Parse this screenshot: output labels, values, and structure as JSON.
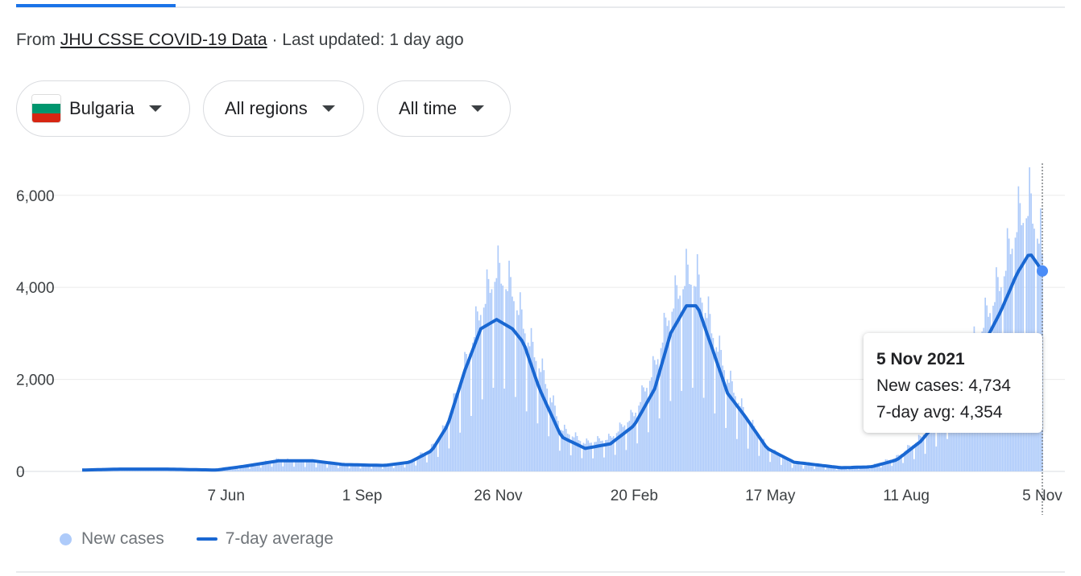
{
  "header": {
    "source_prefix": "From",
    "source_link": "JHU CSSE COVID-19 Data",
    "separator": "·",
    "updated": "Last updated: 1 day ago"
  },
  "filters": [
    {
      "label": "Bulgaria",
      "icon": "bulgaria-flag-icon"
    },
    {
      "label": "All regions",
      "icon": "chevron-down-icon"
    },
    {
      "label": "All time",
      "icon": "chevron-down-icon"
    }
  ],
  "colors": {
    "bars": "#aecbfa",
    "avg_line": "#1967d2",
    "flag": [
      "#ffffff",
      "#00966e",
      "#d62612"
    ]
  },
  "chart_data": {
    "type": "bar",
    "title": "",
    "xlabel": "",
    "ylabel": "",
    "ylim": [
      0,
      6800
    ],
    "y_ticks": [
      "0",
      "2,000",
      "4,000",
      "6,000"
    ],
    "x_ticks": [
      "7 Jun",
      "1 Sep",
      "26 Nov",
      "20 Feb",
      "17 May",
      "11 Aug",
      "5 Nov"
    ],
    "x_start": "2020-03-08",
    "x_end": "2021-11-05",
    "grid": true,
    "legend": "bottom-left",
    "series": [
      {
        "name": "New cases",
        "type": "bar",
        "keypoints": [
          [
            "2020-03-08",
            5
          ],
          [
            "2020-04-01",
            40
          ],
          [
            "2020-05-01",
            60
          ],
          [
            "2020-06-01",
            30
          ],
          [
            "2020-06-20",
            120
          ],
          [
            "2020-07-10",
            250
          ],
          [
            "2020-08-01",
            200
          ],
          [
            "2020-08-20",
            150
          ],
          [
            "2020-09-15",
            130
          ],
          [
            "2020-10-01",
            200
          ],
          [
            "2020-10-15",
            500
          ],
          [
            "2020-10-25",
            1000
          ],
          [
            "2020-11-05",
            2200
          ],
          [
            "2020-11-15",
            3400
          ],
          [
            "2020-11-25",
            4200
          ],
          [
            "2020-12-05",
            3800
          ],
          [
            "2020-12-15",
            2800
          ],
          [
            "2020-12-25",
            2000
          ],
          [
            "2021-01-05",
            900
          ],
          [
            "2021-01-20",
            600
          ],
          [
            "2021-02-05",
            700
          ],
          [
            "2021-02-20",
            1200
          ],
          [
            "2021-03-05",
            2200
          ],
          [
            "2021-03-15",
            3400
          ],
          [
            "2021-03-25",
            4100
          ],
          [
            "2021-04-01",
            4000
          ],
          [
            "2021-04-10",
            3000
          ],
          [
            "2021-04-20",
            2000
          ],
          [
            "2021-05-01",
            1200
          ],
          [
            "2021-05-15",
            500
          ],
          [
            "2021-06-01",
            150
          ],
          [
            "2021-07-01",
            60
          ],
          [
            "2021-07-20",
            120
          ],
          [
            "2021-08-05",
            300
          ],
          [
            "2021-08-20",
            700
          ],
          [
            "2021-09-05",
            1500
          ],
          [
            "2021-09-25",
            2800
          ],
          [
            "2021-10-10",
            4000
          ],
          [
            "2021-10-20",
            5200
          ],
          [
            "2021-10-28",
            5600
          ],
          [
            "2021-11-05",
            4734
          ]
        ]
      },
      {
        "name": "7-day average",
        "type": "line",
        "keypoints": [
          [
            "2020-03-08",
            30
          ],
          [
            "2020-04-01",
            50
          ],
          [
            "2020-05-01",
            50
          ],
          [
            "2020-06-01",
            30
          ],
          [
            "2020-06-20",
            120
          ],
          [
            "2020-07-10",
            230
          ],
          [
            "2020-08-01",
            230
          ],
          [
            "2020-08-20",
            150
          ],
          [
            "2020-09-15",
            130
          ],
          [
            "2020-10-01",
            200
          ],
          [
            "2020-10-15",
            450
          ],
          [
            "2020-10-25",
            1000
          ],
          [
            "2020-11-05",
            2200
          ],
          [
            "2020-11-15",
            3100
          ],
          [
            "2020-11-25",
            3300
          ],
          [
            "2020-12-05",
            3100
          ],
          [
            "2020-12-12",
            2800
          ],
          [
            "2020-12-22",
            1800
          ],
          [
            "2021-01-05",
            750
          ],
          [
            "2021-01-20",
            500
          ],
          [
            "2021-02-05",
            600
          ],
          [
            "2021-02-20",
            1000
          ],
          [
            "2021-03-05",
            1800
          ],
          [
            "2021-03-15",
            3000
          ],
          [
            "2021-03-25",
            3600
          ],
          [
            "2021-04-01",
            3600
          ],
          [
            "2021-04-08",
            2900
          ],
          [
            "2021-04-20",
            1700
          ],
          [
            "2021-05-01",
            1200
          ],
          [
            "2021-05-15",
            500
          ],
          [
            "2021-06-01",
            200
          ],
          [
            "2021-07-01",
            80
          ],
          [
            "2021-07-20",
            100
          ],
          [
            "2021-08-05",
            250
          ],
          [
            "2021-08-20",
            650
          ],
          [
            "2021-09-05",
            1300
          ],
          [
            "2021-09-25",
            2500
          ],
          [
            "2021-10-10",
            3500
          ],
          [
            "2021-10-20",
            4300
          ],
          [
            "2021-10-28",
            4750
          ],
          [
            "2021-11-05",
            4354
          ]
        ]
      }
    ],
    "tooltip": {
      "date": "5 Nov 2021",
      "new_cases": "New cases: 4,734",
      "avg": "7-day avg: 4,354"
    }
  }
}
